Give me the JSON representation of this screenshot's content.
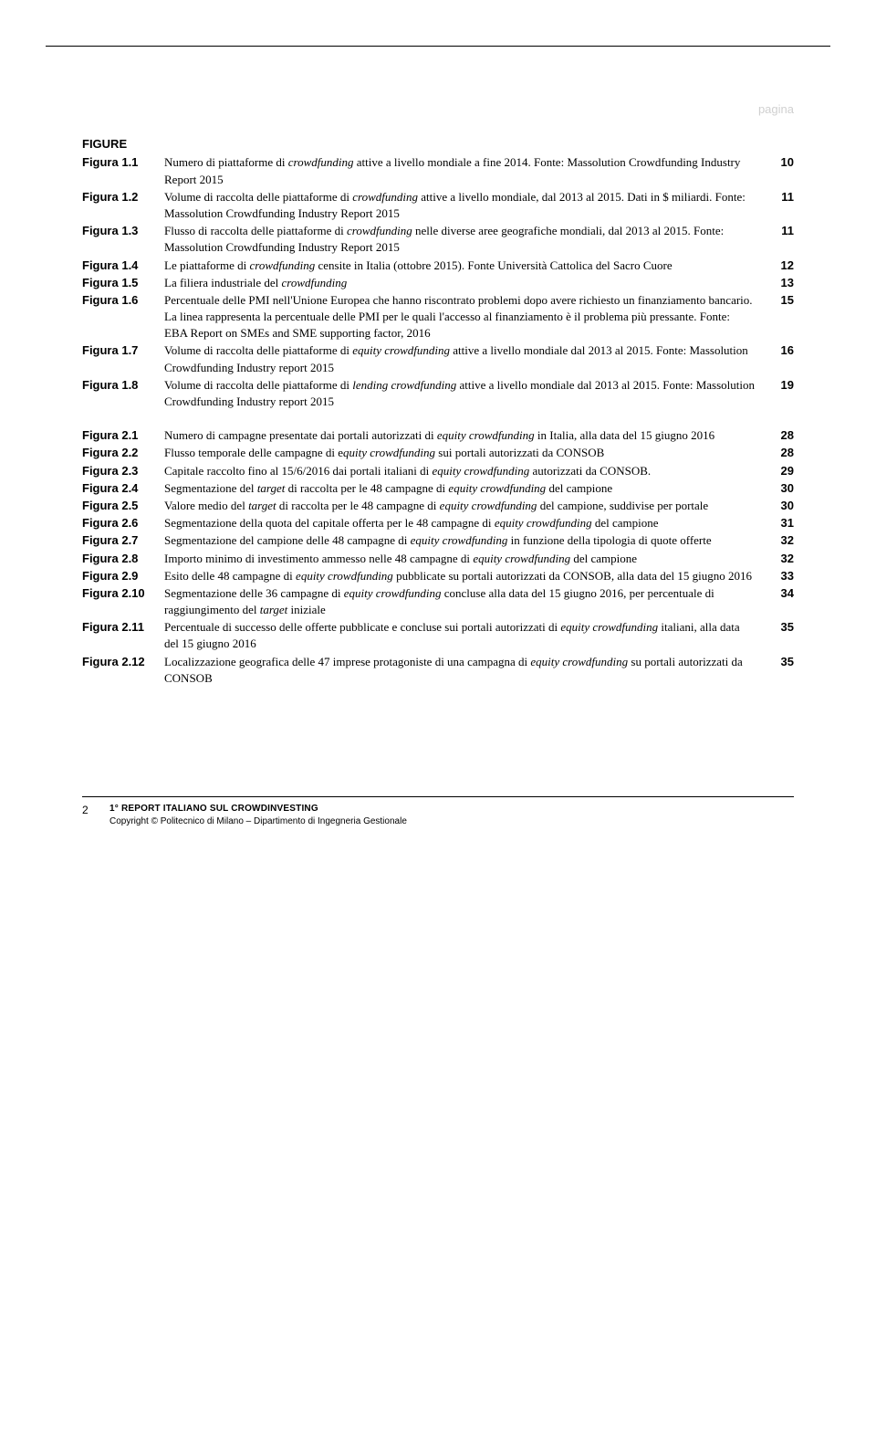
{
  "header": {
    "pagina_label": "pagina"
  },
  "section_figure_title": "FIGURE",
  "figures_group1": [
    {
      "label": "Figura 1.1",
      "desc": "Numero di piattaforme di <i>crowdfunding</i> attive a livello mondiale a fine 2014. Fonte: Massolution Crowdfunding Industry Report 2015",
      "page": "10"
    },
    {
      "label": "Figura 1.2",
      "desc": "Volume di raccolta delle piattaforme di <i>crowdfunding</i> attive a livello mondiale, dal 2013 al 2015. Dati in $ miliardi. Fonte: Massolution Crowdfunding Industry Report 2015",
      "page": "11"
    },
    {
      "label": "Figura 1.3",
      "desc": "Flusso di raccolta delle piattaforme di <i>crowdfunding</i> nelle diverse aree geografiche mondiali, dal 2013 al 2015. Fonte: Massolution Crowdfunding Industry Report 2015",
      "page": "11"
    },
    {
      "label": "Figura 1.4",
      "desc": "Le piattaforme di <i>crowdfunding</i> censite in Italia (ottobre 2015). Fonte Università Cattolica del Sacro Cuore",
      "page": "12"
    },
    {
      "label": "Figura 1.5",
      "desc": "La filiera industriale del <i>crowdfunding</i>",
      "page": "13"
    },
    {
      "label": "Figura 1.6",
      "desc": "Percentuale delle PMI nell'Unione Europea che hanno riscontrato problemi dopo avere richiesto un finanziamento bancario. La linea rappresenta la percentuale delle PMI per le quali l'accesso al finanziamento è il problema più pressante. Fonte: EBA Report on SMEs and SME supporting factor, 2016",
      "page": "15"
    },
    {
      "label": "Figura 1.7",
      "desc": "Volume di raccolta delle piattaforme di <i>equity crowdfunding</i> attive a livello mondiale dal 2013 al 2015. Fonte: Massolution Crowdfunding Industry report 2015",
      "page": "16"
    },
    {
      "label": "Figura 1.8",
      "desc": "Volume di raccolta delle piattaforme di <i>lending crowdfunding</i> attive a livello mondiale dal 2013 al 2015. Fonte: Massolution Crowdfunding Industry report 2015",
      "page": "19"
    }
  ],
  "figures_group2": [
    {
      "label": "Figura 2.1",
      "desc": "Numero di campagne presentate dai portali autorizzati di <i>equity crowdfunding</i> in Italia, alla data del 15 giugno 2016",
      "page": "28"
    },
    {
      "label": "Figura 2.2",
      "desc": "Flusso temporale delle campagne di e<i>quity crowdfunding</i> sui portali autorizzati da CONSOB",
      "page": "28"
    },
    {
      "label": "Figura 2.3",
      "desc": "Capitale raccolto fino al 15/6/2016 dai portali italiani di <i>equity crowdfunding</i> autorizzati da CONSOB.",
      "page": "29"
    },
    {
      "label": "Figura 2.4",
      "desc": "Segmentazione del <i>target</i> di raccolta per le 48 campagne di <i>equity crowdfunding</i> del campione",
      "page": "30"
    },
    {
      "label": "Figura 2.5",
      "desc": "Valore medio del <i>target</i> di raccolta per le 48 campagne di <i>equity crowdfunding</i> del campione, suddivise per portale",
      "page": "30"
    },
    {
      "label": "Figura 2.6",
      "desc": "Segmentazione della quota del capitale offerta per le 48 campagne di <i>equity crowdfunding</i> del campione",
      "page": "31"
    },
    {
      "label": "Figura 2.7",
      "desc": "Segmentazione del campione delle 48 campagne di <i>equity crowdfunding</i> in funzione della tipologia di quote offerte",
      "page": "32"
    },
    {
      "label": "Figura 2.8",
      "desc": "Importo minimo di investimento ammesso nelle 48 campagne di <i>equity crowdfunding</i> del campione",
      "page": "32"
    },
    {
      "label": "Figura 2.9",
      "desc": "Esito delle 48 campagne di <i>equity crowdfunding</i> pubblicate su portali autorizzati da CONSOB, alla data del 15 giugno 2016",
      "page": "33"
    },
    {
      "label": "Figura 2.10",
      "desc": "Segmentazione delle 36 campagne di <i>equity crowdfunding</i> concluse alla data del 15 giugno 2016, per percentuale di raggiungimento del <i>target</i> iniziale",
      "page": "34"
    },
    {
      "label": "Figura 2.11",
      "desc": "Percentuale di successo delle offerte pubblicate e concluse sui portali autorizzati di <i>equity crowdfunding</i> italiani, alla data del 15 giugno 2016",
      "page": "35"
    },
    {
      "label": "Figura 2.12",
      "desc": "Localizzazione geografica delle 47 imprese protagoniste di una campagna di <i>equity crowdfunding</i> su portali autorizzati da CONSOB",
      "page": "35"
    }
  ],
  "footer": {
    "page_no": "2",
    "title": "1° REPORT ITALIANO SUL CROWDINVESTING",
    "sub": "Copyright © Politecnico di Milano – Dipartimento di Ingegneria Gestionale"
  }
}
